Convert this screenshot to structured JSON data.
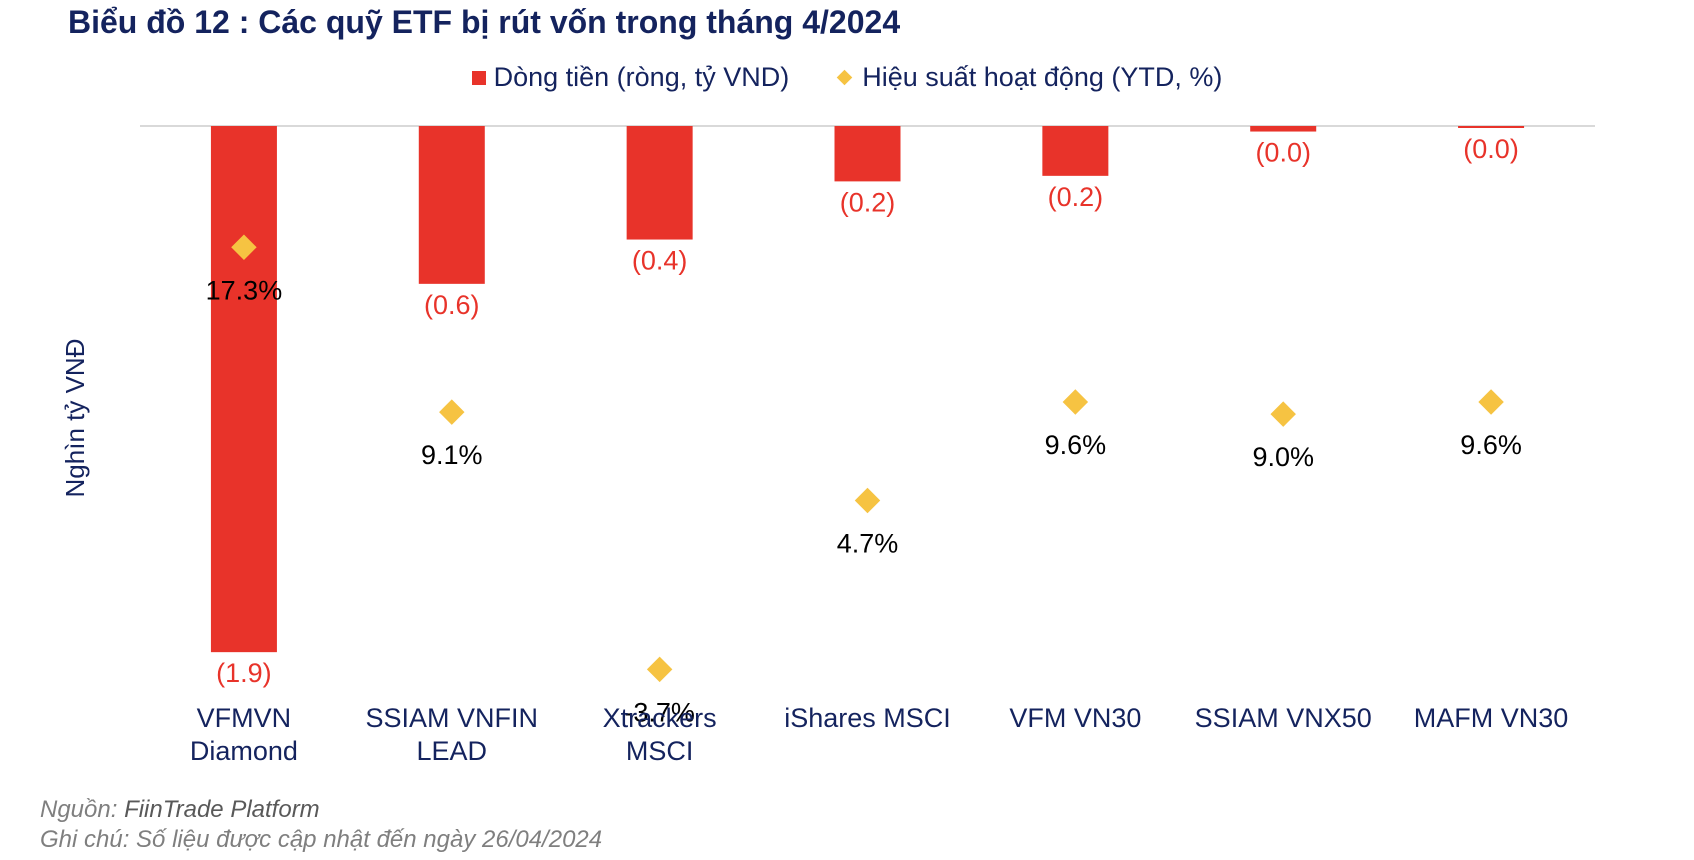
{
  "title": "Biểu đồ 12 : Các quỹ ETF bị rút vốn trong tháng 4/2024",
  "legend": {
    "flow_label": "Dòng tiền (ròng, tỷ VND)",
    "perf_label": "Hiệu suất hoạt động (YTD, %)"
  },
  "colors": {
    "bar": "#e8332a",
    "diamond": "#f6c342",
    "negative_label": "#e8332a",
    "axis_text": "#14235e"
  },
  "footer": {
    "source_prefix": "Nguồn: ",
    "source_name": "FiinTrade Platform",
    "note": "Ghi chú: Số liệu được cập nhật đến ngày 26/04/2024"
  },
  "chart_data": {
    "type": "bar",
    "ylabel": "Nghìn tỷ VNĐ",
    "categories": [
      [
        "VFMVN",
        "Diamond"
      ],
      [
        "SSIAM VNFIN",
        "LEAD"
      ],
      [
        "Xtrackers",
        "MSCI"
      ],
      [
        "iShares MSCI"
      ],
      [
        "VFM VN30"
      ],
      [
        "SSIAM VNX50"
      ],
      [
        "MAFM VN30"
      ]
    ],
    "series": [
      {
        "name": "Dòng tiền (ròng, tỷ VND)",
        "kind": "bar",
        "values": [
          -1.9,
          -0.57,
          -0.41,
          -0.2,
          -0.18,
          -0.02,
          -0.005
        ],
        "labels": [
          "(1.9)",
          "(0.6)",
          "(0.4)",
          "(0.2)",
          "(0.2)",
          "(0.0)",
          "(0.0)"
        ]
      },
      {
        "name": "Hiệu suất hoạt động (YTD, %)",
        "kind": "scatter",
        "values": [
          17.3,
          9.1,
          -3.7,
          4.7,
          9.6,
          9.0,
          9.6
        ],
        "labels": [
          "17.3%",
          "9.1%",
          "-3.7%",
          "4.7%",
          "9.6%",
          "9.0%",
          "9.6%"
        ]
      }
    ],
    "grid": false,
    "legend_position": "top-center"
  }
}
